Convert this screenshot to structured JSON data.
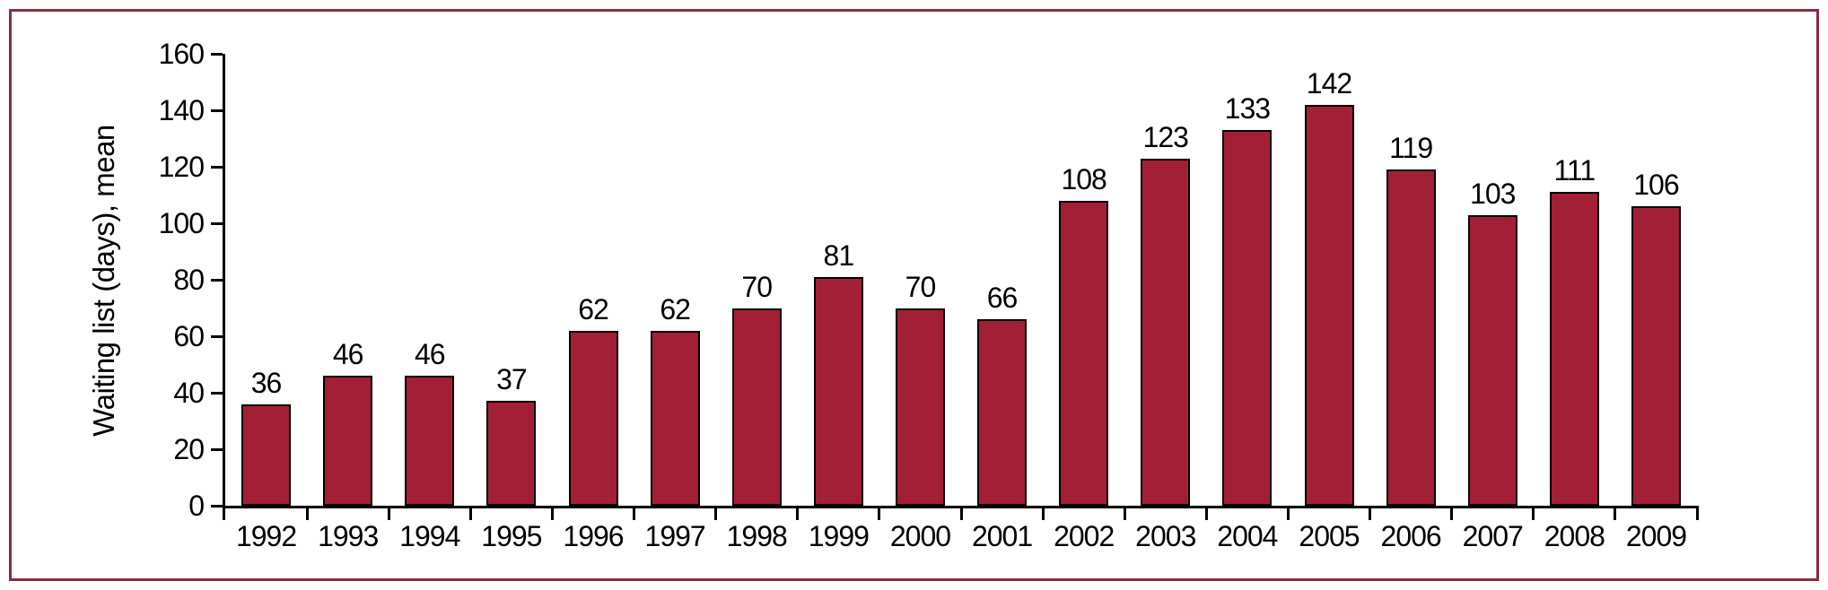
{
  "frame": {
    "border_color": "#8b2c3e",
    "background_color": "#ffffff"
  },
  "chart_data": {
    "type": "bar",
    "title": "",
    "xlabel": "",
    "ylabel": "Waiting list (days), mean",
    "categories": [
      "1992",
      "1993",
      "1994",
      "1995",
      "1996",
      "1997",
      "1998",
      "1999",
      "2000",
      "2001",
      "2002",
      "2003",
      "2004",
      "2005",
      "2006",
      "2007",
      "2008",
      "2009"
    ],
    "values": [
      36,
      46,
      46,
      37,
      62,
      62,
      70,
      81,
      70,
      66,
      108,
      123,
      133,
      142,
      119,
      103,
      111,
      106
    ],
    "ylim": [
      0,
      160
    ],
    "yticks": [
      0,
      20,
      40,
      60,
      80,
      100,
      120,
      140,
      160
    ],
    "grid": false,
    "legend": "none",
    "value_labels_shown": true,
    "bar_color": "#a31f35",
    "bar_border_color": "#000000",
    "axis_color": "#000000",
    "text_color": "#000000"
  }
}
